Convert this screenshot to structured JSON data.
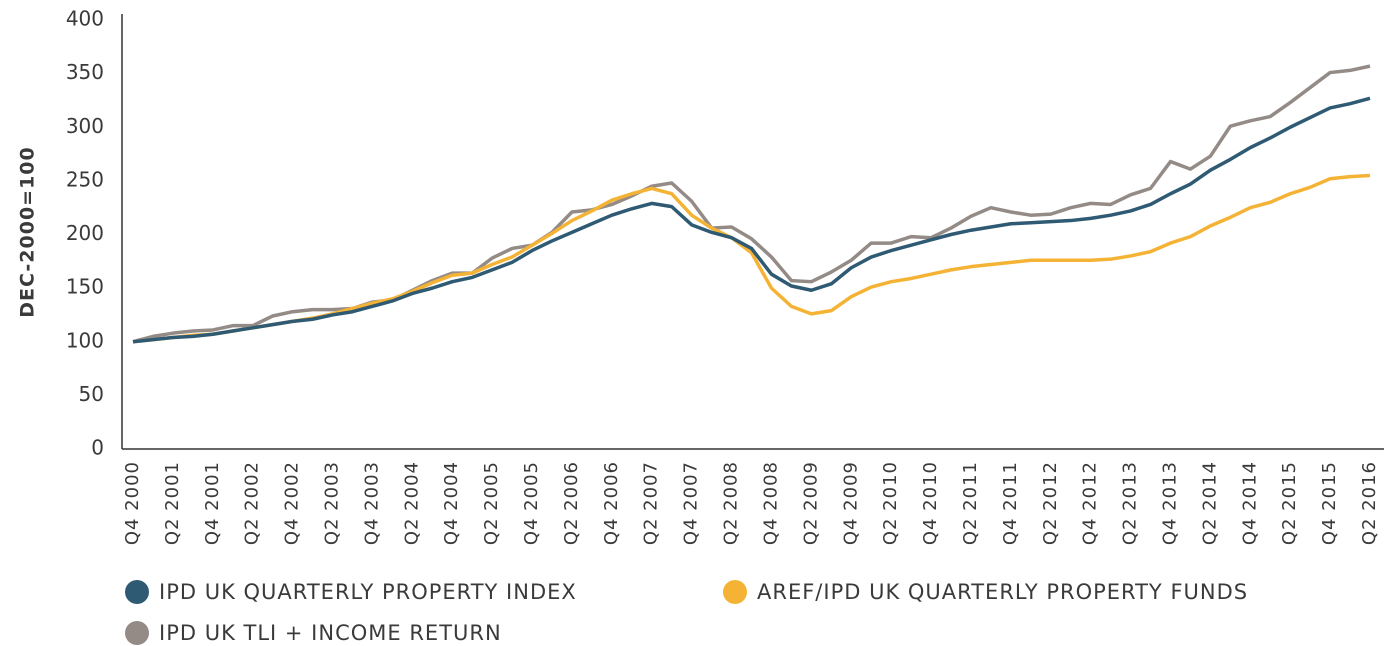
{
  "chart_data": {
    "type": "line",
    "y_label": "DEC-2000=100",
    "categories": [
      "Q4 2000",
      null,
      "Q2 2001",
      null,
      "Q4 2001",
      null,
      "Q2 2002",
      null,
      "Q4 2002",
      null,
      "Q2 2003",
      null,
      "Q4 2003",
      null,
      "Q2 2004",
      null,
      "Q4 2004",
      null,
      "Q2 2005",
      null,
      "Q4 2005",
      null,
      "Q2 2006",
      null,
      "Q4 2006",
      null,
      "Q2 2007",
      null,
      "Q4 2007",
      null,
      "Q2 2008",
      null,
      "Q4 2008",
      null,
      "Q2 2009",
      null,
      "Q4 2009",
      null,
      "Q2 2010",
      null,
      "Q4 2010",
      null,
      "Q2 2011",
      null,
      "Q4 2011",
      null,
      "Q2 2012",
      null,
      "Q4 2012",
      null,
      "Q2 2013",
      null,
      "Q4 2013",
      null,
      "Q2 2014",
      null,
      "Q4 2014",
      null,
      "Q2 2015",
      null,
      "Q4 2015",
      null,
      "Q2 2016"
    ],
    "series": [
      {
        "name": "IPD UK QUARTERLY PROPERTY INDEX",
        "color": "#2f5a73",
        "values": [
          100,
          102,
          104,
          105,
          107,
          110,
          113,
          116,
          119,
          121,
          125,
          128,
          133,
          138,
          145,
          150,
          156,
          160,
          167,
          174,
          185,
          194,
          202,
          210,
          218,
          224,
          229,
          226,
          209,
          202,
          197,
          187,
          163,
          152,
          148,
          154,
          169,
          179,
          185,
          190,
          195,
          200,
          204,
          207,
          210,
          211,
          212,
          213,
          215,
          218,
          222,
          228,
          238,
          247,
          260,
          270,
          281,
          290,
          300,
          309,
          318,
          322,
          327
        ]
      },
      {
        "name": "AREF/IPD UK QUARTERLY PROPERTY FUNDS",
        "color": "#f5b335",
        "values": [
          100,
          102,
          104,
          106,
          107,
          110,
          113,
          116,
          119,
          122,
          126,
          131,
          136,
          140,
          147,
          155,
          162,
          164,
          172,
          179,
          190,
          201,
          213,
          222,
          232,
          238,
          243,
          238,
          218,
          206,
          197,
          183,
          150,
          133,
          126,
          129,
          142,
          151,
          156,
          159,
          163,
          167,
          170,
          172,
          174,
          176,
          176,
          176,
          176,
          177,
          180,
          184,
          192,
          198,
          208,
          216,
          225,
          230,
          238,
          244,
          252,
          254,
          255
        ]
      },
      {
        "name": "IPD UK TLI + INCOME RETURN",
        "color": "#948b86",
        "values": [
          100,
          105,
          108,
          110,
          111,
          115,
          115,
          124,
          128,
          130,
          130,
          131,
          137,
          139,
          148,
          157,
          164,
          164,
          178,
          187,
          190,
          202,
          221,
          223,
          228,
          236,
          245,
          248,
          231,
          206,
          207,
          196,
          179,
          157,
          156,
          165,
          176,
          192,
          192,
          198,
          197,
          206,
          217,
          225,
          221,
          218,
          219,
          225,
          229,
          228,
          237,
          243,
          268,
          261,
          273,
          301,
          306,
          310,
          323,
          337,
          351,
          353,
          357
        ]
      }
    ],
    "ylim": [
      0,
      400
    ],
    "yticks": [
      0,
      50,
      100,
      150,
      200,
      250,
      300,
      350,
      400
    ]
  }
}
